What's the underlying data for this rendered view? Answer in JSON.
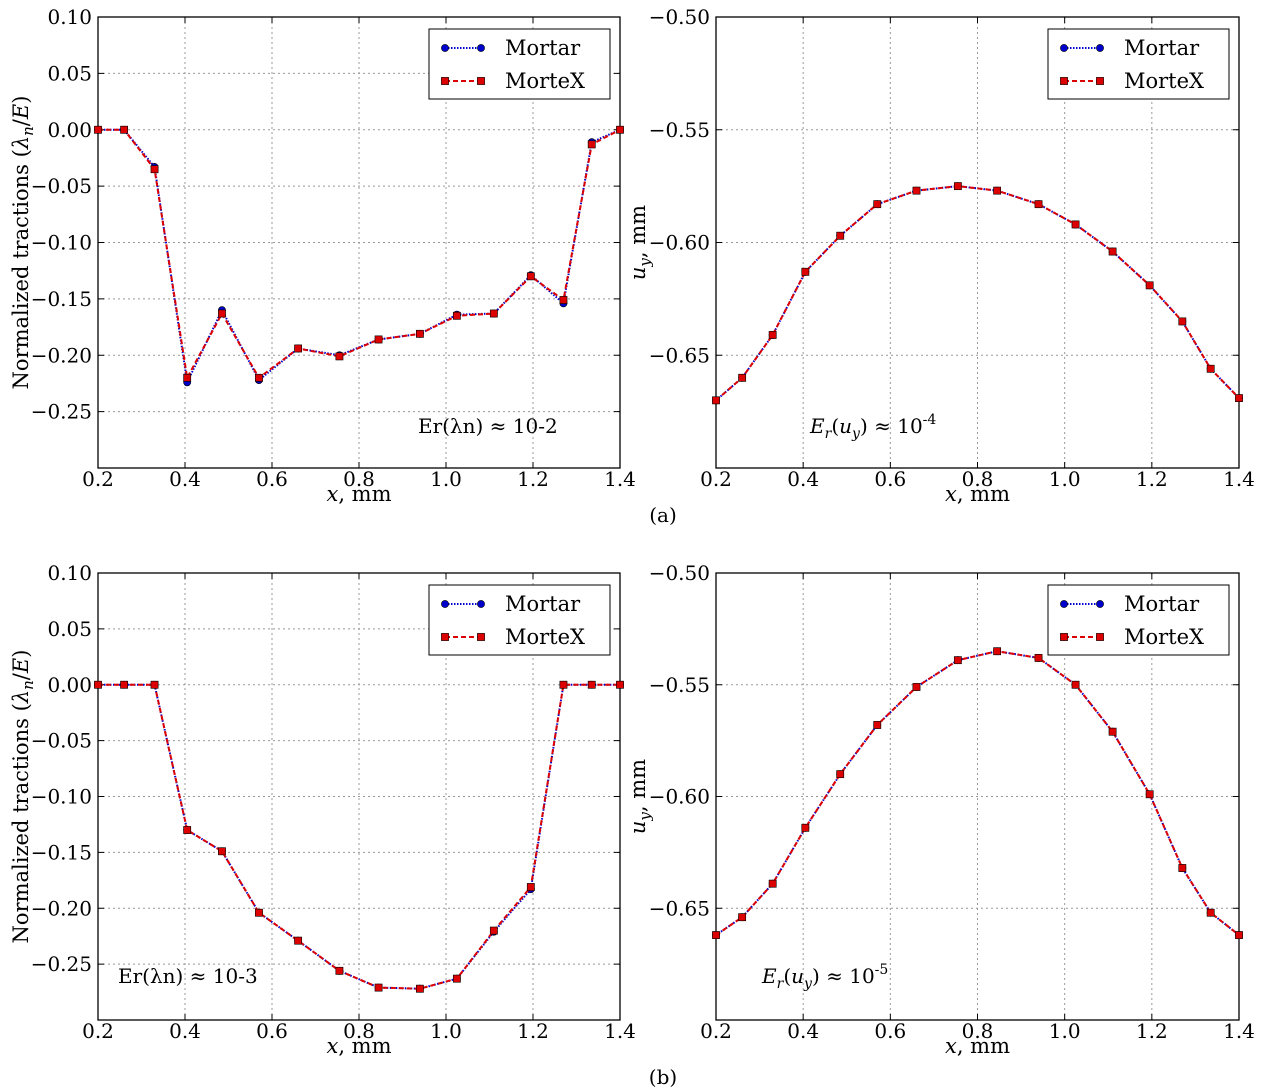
{
  "figure": {
    "caption_a": "(a)",
    "caption_b": "(b)"
  },
  "chart_data": [
    {
      "id": "a_left",
      "type": "line",
      "title": "",
      "xlabel": "x, mm",
      "ylabel": "Normalized tractions (λn/E)",
      "xlim": [
        0.2,
        1.4
      ],
      "ylim": [
        -0.3,
        0.1
      ],
      "xticks": [
        "0.2",
        "0.4",
        "0.6",
        "0.8",
        "1.0",
        "1.2",
        "1.4"
      ],
      "yticks": [
        "0.10",
        "0.05",
        "0.00",
        "−0.05",
        "−0.10",
        "−0.15",
        "−0.20",
        "−0.25"
      ],
      "ytick_values": [
        0.1,
        0.05,
        0.0,
        -0.05,
        -0.1,
        -0.15,
        -0.2,
        -0.25
      ],
      "grid": true,
      "legend": "top-right",
      "annotation": "Er(λn) ≈ 10-2",
      "x": [
        0.2,
        0.26,
        0.33,
        0.405,
        0.485,
        0.57,
        0.66,
        0.755,
        0.845,
        0.94,
        1.025,
        1.11,
        1.195,
        1.27,
        1.335,
        1.4
      ],
      "series": [
        {
          "name": "Mortar",
          "color": "#0000cc",
          "marker": "circle",
          "values": [
            0.0,
            0.0,
            -0.033,
            -0.224,
            -0.16,
            -0.222,
            -0.194,
            -0.2,
            -0.186,
            -0.181,
            -0.164,
            -0.163,
            -0.129,
            -0.154,
            -0.011,
            0.0
          ]
        },
        {
          "name": "MorteX",
          "color": "#dd0000",
          "marker": "square",
          "values": [
            0.0,
            0.0,
            -0.035,
            -0.22,
            -0.163,
            -0.22,
            -0.194,
            -0.201,
            -0.186,
            -0.181,
            -0.165,
            -0.163,
            -0.13,
            -0.151,
            -0.013,
            0.0
          ]
        }
      ]
    },
    {
      "id": "a_right",
      "type": "line",
      "title": "",
      "xlabel": "x, mm",
      "ylabel": "uy, mm",
      "xlim": [
        0.2,
        1.4
      ],
      "ylim": [
        -0.7,
        -0.5
      ],
      "xticks": [
        "0.2",
        "0.4",
        "0.6",
        "0.8",
        "1.0",
        "1.2",
        "1.4"
      ],
      "yticks": [
        "−0.50",
        "−0.55",
        "−0.60",
        "−0.65"
      ],
      "ytick_values": [
        -0.5,
        -0.55,
        -0.6,
        -0.65
      ],
      "grid": true,
      "legend": "top-right",
      "annotation": "Er(uy) ≈ 10-4",
      "x": [
        0.2,
        0.26,
        0.33,
        0.405,
        0.485,
        0.57,
        0.66,
        0.755,
        0.845,
        0.94,
        1.025,
        1.11,
        1.195,
        1.27,
        1.335,
        1.4
      ],
      "series": [
        {
          "name": "Mortar",
          "color": "#0000cc",
          "marker": "circle",
          "values": [
            -0.67,
            -0.66,
            -0.641,
            -0.613,
            -0.597,
            -0.583,
            -0.577,
            -0.575,
            -0.577,
            -0.583,
            -0.592,
            -0.604,
            -0.619,
            -0.635,
            -0.656,
            -0.669
          ]
        },
        {
          "name": "MorteX",
          "color": "#dd0000",
          "marker": "square",
          "values": [
            -0.67,
            -0.66,
            -0.641,
            -0.613,
            -0.597,
            -0.583,
            -0.577,
            -0.575,
            -0.577,
            -0.583,
            -0.592,
            -0.604,
            -0.619,
            -0.635,
            -0.656,
            -0.669
          ]
        }
      ]
    },
    {
      "id": "b_left",
      "type": "line",
      "title": "",
      "xlabel": "x, mm",
      "ylabel": "Normalized tractions (λn/E)",
      "xlim": [
        0.2,
        1.4
      ],
      "ylim": [
        -0.3,
        0.1
      ],
      "xticks": [
        "0.2",
        "0.4",
        "0.6",
        "0.8",
        "1.0",
        "1.2",
        "1.4"
      ],
      "yticks": [
        "0.10",
        "0.05",
        "0.00",
        "−0.05",
        "−0.10",
        "−0.15",
        "−0.20",
        "−0.25"
      ],
      "ytick_values": [
        0.1,
        0.05,
        0.0,
        -0.05,
        -0.1,
        -0.15,
        -0.2,
        -0.25
      ],
      "grid": true,
      "legend": "top-right",
      "annotation": "Er(λn) ≈ 10-3",
      "x": [
        0.2,
        0.26,
        0.33,
        0.405,
        0.485,
        0.57,
        0.66,
        0.755,
        0.845,
        0.94,
        1.025,
        1.11,
        1.195,
        1.27,
        1.335,
        1.4
      ],
      "series": [
        {
          "name": "Mortar",
          "color": "#0000cc",
          "marker": "circle",
          "values": [
            0.0,
            0.0,
            0.0,
            -0.13,
            -0.149,
            -0.204,
            -0.229,
            -0.256,
            -0.271,
            -0.272,
            -0.263,
            -0.221,
            -0.183,
            0.0,
            0.0,
            0.0
          ]
        },
        {
          "name": "MorteX",
          "color": "#dd0000",
          "marker": "square",
          "values": [
            0.0,
            0.0,
            0.0,
            -0.13,
            -0.149,
            -0.204,
            -0.229,
            -0.256,
            -0.271,
            -0.272,
            -0.263,
            -0.22,
            -0.181,
            0.0,
            0.0,
            0.0
          ]
        }
      ]
    },
    {
      "id": "b_right",
      "type": "line",
      "title": "",
      "xlabel": "x, mm",
      "ylabel": "uy, mm",
      "xlim": [
        0.2,
        1.4
      ],
      "ylim": [
        -0.7,
        -0.5
      ],
      "xticks": [
        "0.2",
        "0.4",
        "0.6",
        "0.8",
        "1.0",
        "1.2",
        "1.4"
      ],
      "yticks": [
        "−0.50",
        "−0.55",
        "−0.60",
        "−0.65"
      ],
      "ytick_values": [
        -0.5,
        -0.55,
        -0.6,
        -0.65
      ],
      "grid": true,
      "legend": "top-right",
      "annotation": "Er(uy) ≈ 10-5",
      "x": [
        0.2,
        0.26,
        0.33,
        0.405,
        0.485,
        0.57,
        0.66,
        0.755,
        0.845,
        0.94,
        1.025,
        1.11,
        1.195,
        1.27,
        1.335,
        1.4
      ],
      "series": [
        {
          "name": "Mortar",
          "color": "#0000cc",
          "marker": "circle",
          "values": [
            -0.662,
            -0.654,
            -0.639,
            -0.614,
            -0.59,
            -0.568,
            -0.551,
            -0.539,
            -0.535,
            -0.538,
            -0.55,
            -0.571,
            -0.599,
            -0.632,
            -0.652,
            -0.662
          ]
        },
        {
          "name": "MorteX",
          "color": "#dd0000",
          "marker": "square",
          "values": [
            -0.662,
            -0.654,
            -0.639,
            -0.614,
            -0.59,
            -0.568,
            -0.551,
            -0.539,
            -0.535,
            -0.538,
            -0.55,
            -0.571,
            -0.599,
            -0.632,
            -0.652,
            -0.662
          ]
        }
      ]
    }
  ]
}
